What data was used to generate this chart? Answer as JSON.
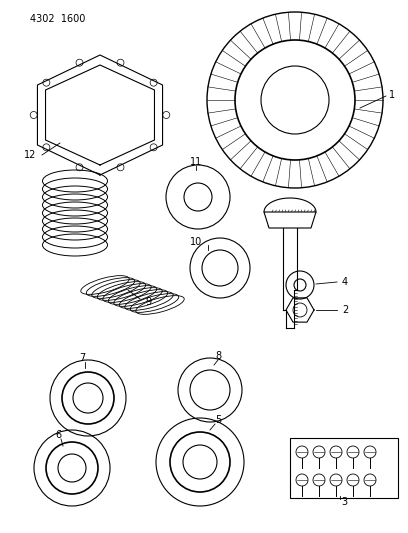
{
  "header_text": "4302  1600",
  "background_color": "#ffffff",
  "line_color": "#000000",
  "fig_width": 4.08,
  "fig_height": 5.33,
  "dpi": 100
}
